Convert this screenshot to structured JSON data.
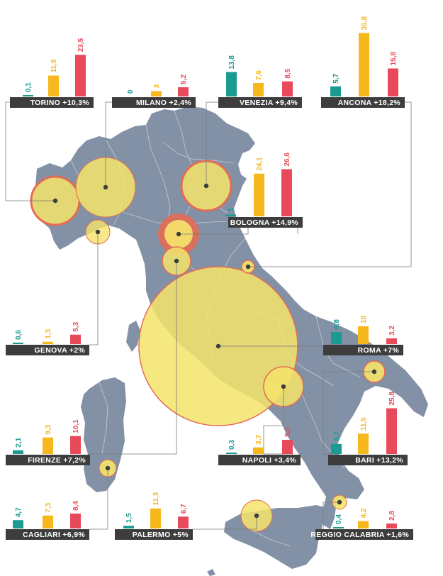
{
  "colors": {
    "teal": "#1a9a90",
    "yellow": "#f7b81e",
    "red": "#e84a5b",
    "label_bg": "#3d3d3d",
    "land": "#8391a6",
    "region_line": "#c5ccd7",
    "bubble_fill": "#f5e46a",
    "bubble_stroke": "#e36b55",
    "leader": "#7a7a7a"
  },
  "cities": [
    {
      "id": "torino",
      "label": "TORINO +10,3%",
      "values": [
        0.1,
        11.8,
        23.5
      ],
      "value_labels": [
        "0,1",
        "11,8",
        "23,5"
      ]
    },
    {
      "id": "milano",
      "label": "MILANO +2,4%",
      "values": [
        0,
        3,
        5.2
      ],
      "value_labels": [
        "0",
        "3",
        "5,2"
      ]
    },
    {
      "id": "venezia",
      "label": "VENEZIA +9,4%",
      "values": [
        13.8,
        7.6,
        8.5
      ],
      "value_labels": [
        "13,8",
        "7,6",
        "8,5"
      ]
    },
    {
      "id": "ancona",
      "label": "ANCONA +18,2%",
      "values": [
        5.7,
        35.8,
        15.8
      ],
      "value_labels": [
        "5,7",
        "35,8",
        "15,8"
      ]
    },
    {
      "id": "bologna",
      "label": "BOLOGNA +14,9%",
      "values": [
        1,
        24.1,
        26.6
      ],
      "value_labels": [
        "1",
        "24,1",
        "26,6"
      ]
    },
    {
      "id": "genova",
      "label": "GENOVA +2%",
      "values": [
        0.6,
        1.3,
        5.3
      ],
      "value_labels": [
        "0,6",
        "1,3",
        "5,3"
      ]
    },
    {
      "id": "roma",
      "label": "ROMA +7%",
      "values": [
        6.8,
        10,
        3.2
      ],
      "value_labels": [
        "6,8",
        "10",
        "3,2"
      ]
    },
    {
      "id": "firenze",
      "label": "FIRENZE +7,2%",
      "values": [
        2.1,
        9.3,
        10.1
      ],
      "value_labels": [
        "2,1",
        "9,3",
        "10,1"
      ]
    },
    {
      "id": "napoli",
      "label": "NAPOLI +3,4%",
      "values": [
        0.3,
        3.7,
        8.0
      ],
      "value_labels": [
        "0,3",
        "3,7",
        "8,0"
      ]
    },
    {
      "id": "bari",
      "label": "BARI +13,2%",
      "values": [
        5.7,
        11.5,
        25.8
      ],
      "value_labels": [
        "5,7",
        "11,5",
        "25,8"
      ]
    },
    {
      "id": "cagliari",
      "label": "CAGLIARI +6,9%",
      "values": [
        4.7,
        7.3,
        8.4
      ],
      "value_labels": [
        "4,7",
        "7,3",
        "8,4"
      ]
    },
    {
      "id": "palermo",
      "label": "PALERMO +5%",
      "values": [
        1.5,
        11.3,
        6.7
      ],
      "value_labels": [
        "1,5",
        "11,3",
        "6,7"
      ]
    },
    {
      "id": "reggio",
      "label": "REGGIO CALABRIA +1,6%",
      "values": [
        0.4,
        4.2,
        2.8
      ],
      "value_labels": [
        "0,4",
        "4,2",
        "2,8"
      ]
    }
  ]
}
